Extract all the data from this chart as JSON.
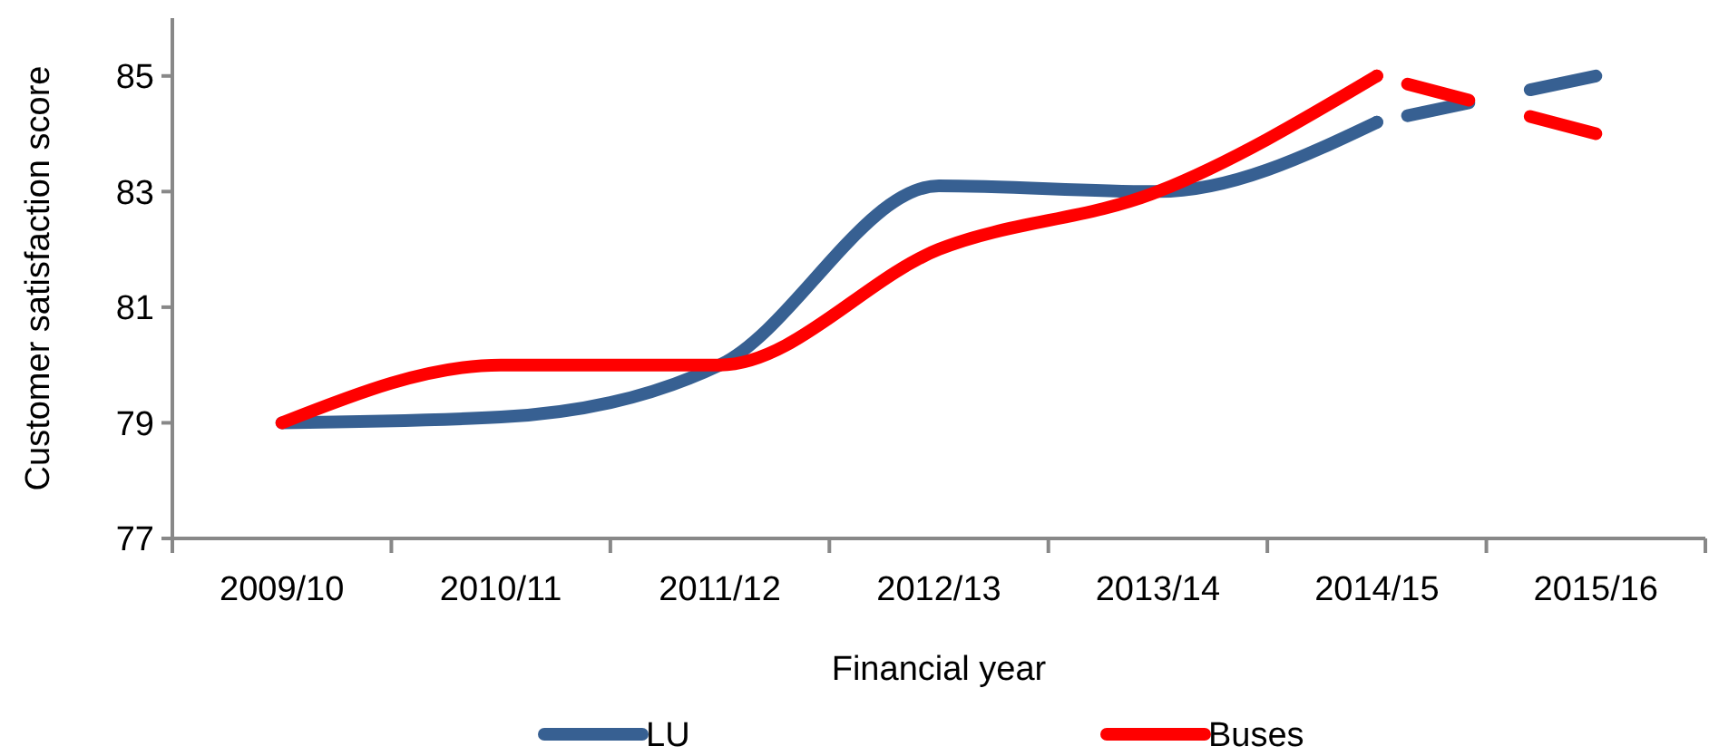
{
  "chart_data": {
    "type": "line",
    "xlabel": "Financial year",
    "ylabel": "Customer satisfaction score",
    "categories": [
      "2009/10",
      "2010/11",
      "2011/12",
      "2012/13",
      "2013/14",
      "2014/15",
      "2015/16"
    ],
    "series": [
      {
        "name": "LU",
        "color": "#376092",
        "values": [
          79,
          79.1,
          80,
          83.1,
          83,
          84.2,
          null
        ]
      },
      {
        "name": "Buses",
        "color": "#ff0000",
        "values": [
          79,
          80,
          80,
          82,
          83,
          85,
          null
        ]
      },
      {
        "color": "#376092",
        "line_style": "dashed",
        "values": [
          null,
          null,
          null,
          null,
          null,
          84.2,
          85
        ]
      },
      {
        "color": "#ff0000",
        "line_style": "dashed",
        "values": [
          null,
          null,
          null,
          null,
          null,
          85,
          84
        ]
      }
    ],
    "ylim": [
      77,
      86
    ],
    "yticks": [
      77,
      79,
      81,
      83,
      85
    ],
    "grid": false,
    "legend": "bottom",
    "marker": "none",
    "line_style": "solid"
  }
}
